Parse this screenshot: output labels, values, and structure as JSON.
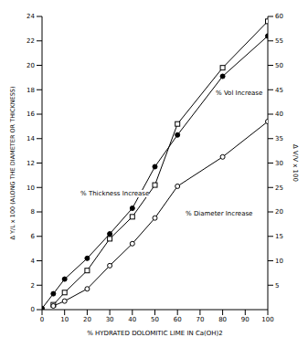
{
  "chart_data": {
    "type": "scatter",
    "x_label": "% HYDRATED DOLOMITIC LIME IN Ca(OH)2",
    "y_label": "Δ Y/L x 100 (ALONG THE DIAMETER OR THICKNESS)",
    "y2_label": "Δ V/V x 100",
    "xlim": [
      0,
      100
    ],
    "xticks": [
      0,
      10,
      20,
      30,
      40,
      50,
      60,
      70,
      80,
      90,
      100
    ],
    "ylim": [
      0,
      24
    ],
    "yticks": [
      0,
      2,
      4,
      6,
      8,
      10,
      12,
      14,
      16,
      18,
      20,
      22,
      24
    ],
    "y2lim": [
      0,
      60
    ],
    "y2ticks": [
      5,
      10,
      15,
      20,
      25,
      30,
      35,
      40,
      45,
      50,
      55,
      60
    ],
    "grid": false,
    "series": [
      {
        "name": "% Vol Increase",
        "axis": "y2",
        "color": "#000000",
        "marker": "square",
        "line_style": "solid",
        "x": [
          5,
          10,
          20,
          30,
          40,
          50,
          60,
          80,
          100
        ],
        "values": [
          1,
          3.5,
          8,
          14.5,
          19,
          25.5,
          38,
          49.5,
          59
        ]
      },
      {
        "name": "% Thickness Increase",
        "color": "#000000",
        "marker": "filled_circle",
        "line_style": "solid",
        "x": [
          0,
          5,
          10,
          20,
          30,
          40,
          50,
          60,
          80,
          100
        ],
        "values": [
          0.1,
          1.3,
          2.5,
          4.2,
          6.2,
          8.3,
          11.7,
          14.3,
          19.1,
          22.4
        ]
      },
      {
        "name": "% Diameter Increase",
        "color": "#000000",
        "marker": "open_circle",
        "line_style": "solid",
        "x": [
          5,
          10,
          20,
          30,
          40,
          50,
          60,
          80,
          100
        ],
        "values": [
          0.3,
          0.7,
          1.7,
          3.6,
          5.4,
          7.5,
          10.1,
          12.5,
          15.4
        ]
      }
    ]
  }
}
